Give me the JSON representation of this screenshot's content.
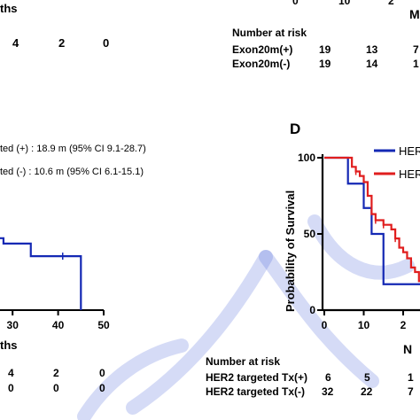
{
  "top_left": {
    "xlabel_partial": "ths",
    "counts": [
      "4",
      "2",
      "0"
    ]
  },
  "top_right": {
    "tick_partial": [
      "0",
      "10",
      "2"
    ],
    "xlabel_partial": "M",
    "risk_title": "Number at risk",
    "rows": [
      {
        "label": "Exon20m(+)",
        "values": [
          "19",
          "13",
          "7"
        ]
      },
      {
        "label": "Exon20m(-)",
        "values": [
          "19",
          "14",
          "1"
        ]
      }
    ]
  },
  "mid_left": {
    "annot1": "ted (+) : 18.9 m (95% CI 9.1-28.7)",
    "annot2": "ted  (-) : 10.6 m (95% CI 6.1-15.1)",
    "xticks": [
      "30",
      "40",
      "50"
    ],
    "xlabel_partial": "ths",
    "risk_rows": [
      [
        "4",
        "2",
        "0"
      ],
      [
        "0",
        "0",
        "0"
      ]
    ]
  },
  "panel_d": {
    "letter": "D",
    "ylabel": "Probability of Survival",
    "yticks": [
      "100",
      "50",
      "0"
    ],
    "xticks": [
      "0",
      "10",
      "2"
    ],
    "legend": [
      "HER",
      "HER"
    ],
    "xlabel_partial": "N",
    "risk_title": "Number at risk",
    "rows": [
      {
        "label": "HER2 targeted Tx(+)",
        "values": [
          "6",
          "5",
          "1"
        ]
      },
      {
        "label": "HER2 targeted Tx(-)",
        "values": [
          "32",
          "22",
          "7"
        ]
      }
    ]
  },
  "colors": {
    "blue": "#1428b4",
    "red": "#e01e1e",
    "watermark": "#3f5bd6"
  },
  "chart_data": [
    {
      "type": "line",
      "title": "",
      "xlabel": "",
      "ylabel": "",
      "xlim": [
        0,
        50
      ],
      "series": [
        {
          "x": [
            22,
            28,
            34,
            44,
            45
          ],
          "y": [
            40,
            37,
            30,
            30,
            0
          ]
        }
      ]
    },
    {
      "type": "line",
      "title": "",
      "xlabel": "",
      "ylabel": "Probability of Survival",
      "xlim": [
        0,
        27
      ],
      "ylim": [
        0,
        100
      ],
      "series": [
        {
          "x": [
            0,
            5,
            6,
            9,
            10,
            11,
            12,
            15,
            19,
            27
          ],
          "y": [
            100,
            100,
            83,
            83,
            67,
            67,
            50,
            17,
            17,
            17
          ]
        },
        {
          "x": [
            0,
            6,
            7,
            8,
            9,
            10,
            11,
            12,
            13,
            15,
            17,
            18,
            19,
            20,
            21,
            22,
            23,
            24,
            27
          ],
          "y": [
            100,
            100,
            94,
            91,
            88,
            84,
            75,
            63,
            59,
            56,
            53,
            47,
            41,
            38,
            34,
            28,
            25,
            19,
            19
          ]
        }
      ]
    }
  ]
}
